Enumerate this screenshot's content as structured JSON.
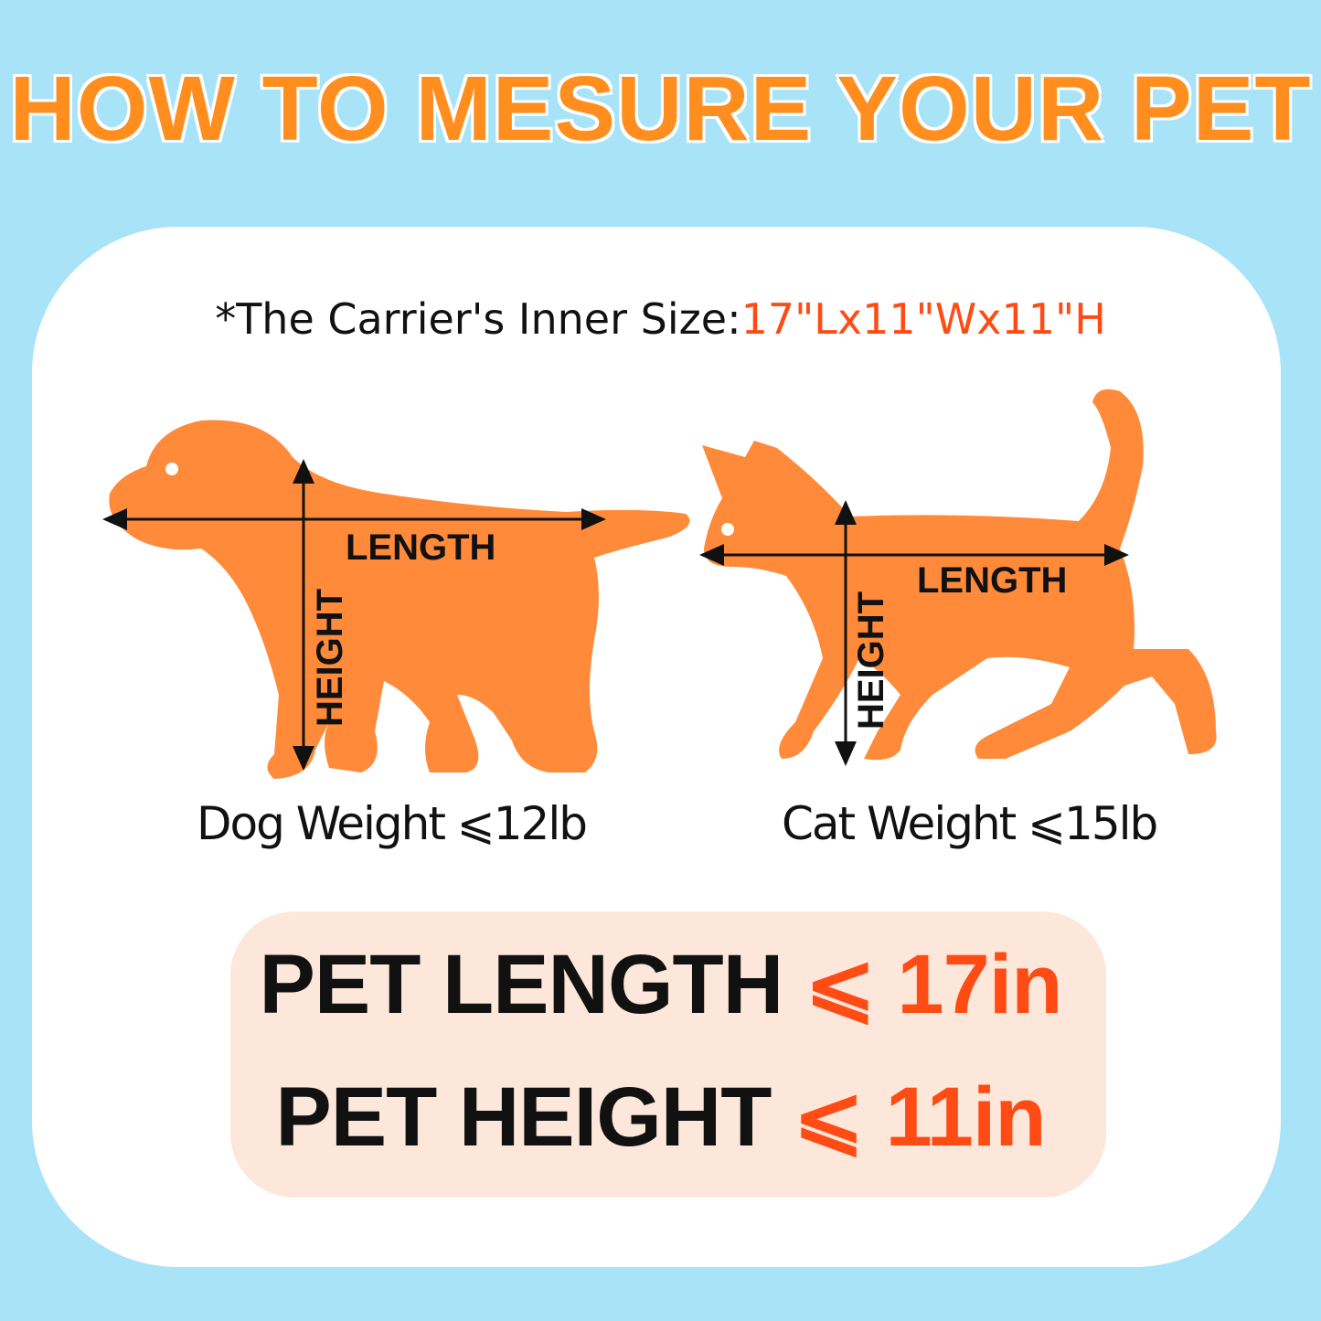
{
  "title": "HOW TO MESURE YOUR PET",
  "subtitle": {
    "label": "*The Carrier's Inner Size:",
    "value": "17\"Lx11\"Wx11\"H"
  },
  "dog": {
    "length_label": "LENGTH",
    "height_label": "HEIGHT",
    "weight": "Dog Weight ⩽12lb"
  },
  "cat": {
    "length_label": "LENGTH",
    "height_label": "HEIGHT",
    "weight": "Cat Weight ⩽15lb"
  },
  "limits": [
    {
      "label": "PET LENGTH",
      "value": "⩽ 17in"
    },
    {
      "label": "PET HEIGHT",
      "value": "⩽ 11in"
    }
  ],
  "colors": {
    "background": "#a9e3f7",
    "title": "#ff8e1f",
    "silhouette": "#ff8a3a",
    "highlight": "#ff4b14",
    "box": "#fde7da"
  }
}
